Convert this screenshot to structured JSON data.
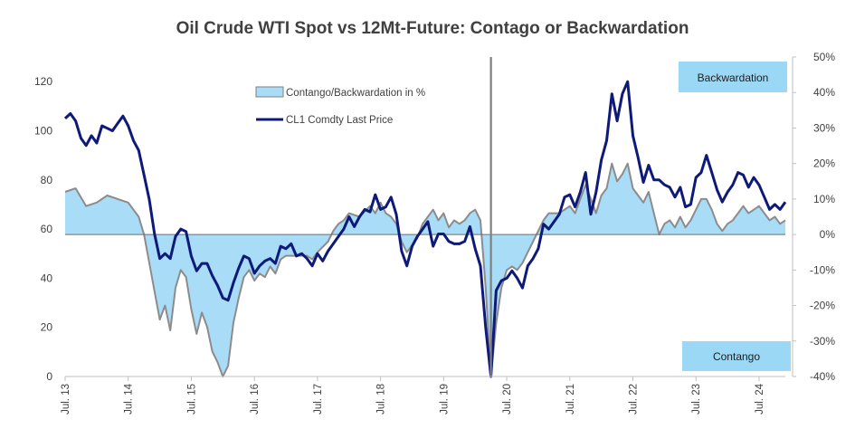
{
  "chart_data": {
    "type": "line",
    "title": "Oil Crude WTI Spot vs 12Mt-Future: Contago or Backwardation",
    "left_axis": {
      "ylim": [
        0,
        130
      ],
      "ticks": [
        0,
        20,
        40,
        60,
        80,
        100,
        120
      ]
    },
    "right_axis": {
      "ylim": [
        -40,
        50
      ],
      "unit": "%",
      "ticks": [
        "-40%",
        "-30%",
        "-20%",
        "-10%",
        "0%",
        "10%",
        "20%",
        "30%",
        "40%",
        "50%"
      ],
      "tick_values": [
        -40,
        -30,
        -20,
        -10,
        0,
        10,
        20,
        30,
        40,
        50
      ]
    },
    "x_axis": {
      "range": [
        "2013-07",
        "2024-12"
      ],
      "tick_labels": [
        "Jul. 13",
        "Jul. 14",
        "Jul. 15",
        "Jul. 16",
        "Jul. 17",
        "Jul. 18",
        "Jul. 19",
        "Jul. 20",
        "Jul. 21",
        "Jul. 22",
        "Jul. 23",
        "Jul. 24"
      ],
      "tick_dates": [
        "2013-07",
        "2014-07",
        "2015-07",
        "2016-07",
        "2017-07",
        "2018-07",
        "2019-07",
        "2020-07",
        "2021-07",
        "2022-07",
        "2023-07",
        "2024-07"
      ]
    },
    "legend": {
      "placement": "top-center",
      "entries": [
        "Contango/Backwardation in %",
        "CL1 Comdty Last Price"
      ]
    },
    "annotations": {
      "top_box": "Backwardation",
      "bottom_box": "Contango",
      "vertical_line_date": "2020-04"
    },
    "series": [
      {
        "name": "Contango/Backwardation in %",
        "axis": "right",
        "kind": "area",
        "color": "#a9dcf7",
        "edge_color": "#8c8c8c",
        "points": [
          [
            "2013-07",
            12
          ],
          [
            "2013-09",
            13
          ],
          [
            "2013-11",
            8
          ],
          [
            "2014-01",
            9
          ],
          [
            "2014-03",
            11
          ],
          [
            "2014-05",
            10
          ],
          [
            "2014-07",
            9
          ],
          [
            "2014-09",
            5
          ],
          [
            "2014-10",
            0
          ],
          [
            "2014-11",
            -8
          ],
          [
            "2014-12",
            -16
          ],
          [
            "2015-01",
            -24
          ],
          [
            "2015-02",
            -20
          ],
          [
            "2015-03",
            -27
          ],
          [
            "2015-04",
            -15
          ],
          [
            "2015-05",
            -10
          ],
          [
            "2015-06",
            -12
          ],
          [
            "2015-07",
            -21
          ],
          [
            "2015-08",
            -28
          ],
          [
            "2015-09",
            -22
          ],
          [
            "2015-10",
            -26
          ],
          [
            "2015-11",
            -33
          ],
          [
            "2015-12",
            -36
          ],
          [
            "2016-01",
            -40
          ],
          [
            "2016-02",
            -37
          ],
          [
            "2016-03",
            -25
          ],
          [
            "2016-04",
            -18
          ],
          [
            "2016-05",
            -12
          ],
          [
            "2016-06",
            -10
          ],
          [
            "2016-07",
            -13
          ],
          [
            "2016-08",
            -11
          ],
          [
            "2016-09",
            -12
          ],
          [
            "2016-10",
            -9
          ],
          [
            "2016-11",
            -11
          ],
          [
            "2016-12",
            -7
          ],
          [
            "2017-01",
            -6
          ],
          [
            "2017-03",
            -6
          ],
          [
            "2017-05",
            -6
          ],
          [
            "2017-06",
            -7
          ],
          [
            "2017-07",
            -5
          ],
          [
            "2017-09",
            -2
          ],
          [
            "2017-10",
            1
          ],
          [
            "2017-11",
            3
          ],
          [
            "2017-12",
            4
          ],
          [
            "2018-01",
            6
          ],
          [
            "2018-03",
            5
          ],
          [
            "2018-05",
            8
          ],
          [
            "2018-06",
            6
          ],
          [
            "2018-07",
            9
          ],
          [
            "2018-08",
            6
          ],
          [
            "2018-09",
            5
          ],
          [
            "2018-10",
            3
          ],
          [
            "2018-11",
            -2
          ],
          [
            "2018-12",
            -5
          ],
          [
            "2019-01",
            -3
          ],
          [
            "2019-02",
            -1
          ],
          [
            "2019-03",
            3
          ],
          [
            "2019-04",
            5
          ],
          [
            "2019-05",
            7
          ],
          [
            "2019-06",
            4
          ],
          [
            "2019-07",
            6
          ],
          [
            "2019-08",
            2
          ],
          [
            "2019-09",
            4
          ],
          [
            "2019-10",
            3
          ],
          [
            "2019-11",
            4
          ],
          [
            "2019-12",
            6
          ],
          [
            "2020-01",
            7
          ],
          [
            "2020-02",
            4
          ],
          [
            "2020-03",
            -15
          ],
          [
            "2020-04",
            -40
          ],
          [
            "2020-05",
            -25
          ],
          [
            "2020-06",
            -15
          ],
          [
            "2020-07",
            -10
          ],
          [
            "2020-08",
            -9
          ],
          [
            "2020-09",
            -10
          ],
          [
            "2020-10",
            -8
          ],
          [
            "2020-11",
            -5
          ],
          [
            "2020-12",
            -2
          ],
          [
            "2021-01",
            1
          ],
          [
            "2021-02",
            4
          ],
          [
            "2021-03",
            6
          ],
          [
            "2021-05",
            6
          ],
          [
            "2021-07",
            8
          ],
          [
            "2021-08",
            6
          ],
          [
            "2021-09",
            10
          ],
          [
            "2021-10",
            14
          ],
          [
            "2021-11",
            10
          ],
          [
            "2021-12",
            6
          ],
          [
            "2022-01",
            11
          ],
          [
            "2022-02",
            13
          ],
          [
            "2022-03",
            20
          ],
          [
            "2022-04",
            15
          ],
          [
            "2022-05",
            17
          ],
          [
            "2022-06",
            20
          ],
          [
            "2022-07",
            13
          ],
          [
            "2022-08",
            11
          ],
          [
            "2022-09",
            9
          ],
          [
            "2022-10",
            12
          ],
          [
            "2022-11",
            6
          ],
          [
            "2022-12",
            0
          ],
          [
            "2023-01",
            3
          ],
          [
            "2023-02",
            4
          ],
          [
            "2023-03",
            2
          ],
          [
            "2023-04",
            5
          ],
          [
            "2023-05",
            2
          ],
          [
            "2023-06",
            4
          ],
          [
            "2023-07",
            7
          ],
          [
            "2023-08",
            10
          ],
          [
            "2023-09",
            10
          ],
          [
            "2023-10",
            7
          ],
          [
            "2023-11",
            3
          ],
          [
            "2023-12",
            1
          ],
          [
            "2024-01",
            3
          ],
          [
            "2024-02",
            4
          ],
          [
            "2024-03",
            6
          ],
          [
            "2024-04",
            8
          ],
          [
            "2024-05",
            6
          ],
          [
            "2024-06",
            7
          ],
          [
            "2024-07",
            8
          ],
          [
            "2024-08",
            6
          ],
          [
            "2024-09",
            4
          ],
          [
            "2024-10",
            5
          ],
          [
            "2024-11",
            3
          ],
          [
            "2024-12",
            4
          ]
        ]
      },
      {
        "name": "CL1 Comdty Last Price",
        "axis": "left",
        "kind": "line",
        "color": "#0e1a7a",
        "points": [
          [
            "2013-07",
            105
          ],
          [
            "2013-08",
            107
          ],
          [
            "2013-09",
            104
          ],
          [
            "2013-10",
            97
          ],
          [
            "2013-11",
            94
          ],
          [
            "2013-12",
            98
          ],
          [
            "2014-01",
            95
          ],
          [
            "2014-02",
            102
          ],
          [
            "2014-03",
            101
          ],
          [
            "2014-04",
            100
          ],
          [
            "2014-05",
            103
          ],
          [
            "2014-06",
            106
          ],
          [
            "2014-07",
            102
          ],
          [
            "2014-08",
            96
          ],
          [
            "2014-09",
            92
          ],
          [
            "2014-10",
            82
          ],
          [
            "2014-11",
            72
          ],
          [
            "2014-12",
            58
          ],
          [
            "2015-01",
            48
          ],
          [
            "2015-02",
            50
          ],
          [
            "2015-03",
            48
          ],
          [
            "2015-04",
            57
          ],
          [
            "2015-05",
            60
          ],
          [
            "2015-06",
            59
          ],
          [
            "2015-07",
            49
          ],
          [
            "2015-08",
            43
          ],
          [
            "2015-09",
            46
          ],
          [
            "2015-10",
            46
          ],
          [
            "2015-11",
            41
          ],
          [
            "2015-12",
            37
          ],
          [
            "2016-01",
            32
          ],
          [
            "2016-02",
            31
          ],
          [
            "2016-03",
            38
          ],
          [
            "2016-04",
            44
          ],
          [
            "2016-05",
            49
          ],
          [
            "2016-06",
            48
          ],
          [
            "2016-07",
            42
          ],
          [
            "2016-08",
            45
          ],
          [
            "2016-09",
            47
          ],
          [
            "2016-10",
            48
          ],
          [
            "2016-11",
            46
          ],
          [
            "2016-12",
            53
          ],
          [
            "2017-01",
            52
          ],
          [
            "2017-02",
            54
          ],
          [
            "2017-03",
            49
          ],
          [
            "2017-04",
            50
          ],
          [
            "2017-05",
            48
          ],
          [
            "2017-06",
            45
          ],
          [
            "2017-07",
            50
          ],
          [
            "2017-08",
            47
          ],
          [
            "2017-09",
            51
          ],
          [
            "2017-10",
            54
          ],
          [
            "2017-11",
            57
          ],
          [
            "2017-12",
            60
          ],
          [
            "2018-01",
            65
          ],
          [
            "2018-02",
            61
          ],
          [
            "2018-03",
            65
          ],
          [
            "2018-04",
            68
          ],
          [
            "2018-05",
            67
          ],
          [
            "2018-06",
            74
          ],
          [
            "2018-07",
            68
          ],
          [
            "2018-08",
            69
          ],
          [
            "2018-09",
            73
          ],
          [
            "2018-10",
            66
          ],
          [
            "2018-11",
            51
          ],
          [
            "2018-12",
            45
          ],
          [
            "2019-01",
            53
          ],
          [
            "2019-02",
            57
          ],
          [
            "2019-03",
            60
          ],
          [
            "2019-04",
            63
          ],
          [
            "2019-05",
            53
          ],
          [
            "2019-06",
            58
          ],
          [
            "2019-07",
            58
          ],
          [
            "2019-08",
            55
          ],
          [
            "2019-09",
            54
          ],
          [
            "2019-10",
            54
          ],
          [
            "2019-11",
            55
          ],
          [
            "2019-12",
            61
          ],
          [
            "2020-01",
            52
          ],
          [
            "2020-02",
            45
          ],
          [
            "2020-03",
            20
          ],
          [
            "2020-04",
            -2
          ],
          [
            "2020-05",
            35
          ],
          [
            "2020-06",
            39
          ],
          [
            "2020-07",
            40
          ],
          [
            "2020-08",
            43
          ],
          [
            "2020-09",
            40
          ],
          [
            "2020-10",
            36
          ],
          [
            "2020-11",
            45
          ],
          [
            "2020-12",
            48
          ],
          [
            "2021-01",
            52
          ],
          [
            "2021-02",
            62
          ],
          [
            "2021-03",
            60
          ],
          [
            "2021-04",
            63
          ],
          [
            "2021-05",
            66
          ],
          [
            "2021-06",
            73
          ],
          [
            "2021-07",
            74
          ],
          [
            "2021-08",
            69
          ],
          [
            "2021-09",
            75
          ],
          [
            "2021-10",
            83
          ],
          [
            "2021-11",
            66
          ],
          [
            "2021-12",
            75
          ],
          [
            "2022-01",
            88
          ],
          [
            "2022-02",
            96
          ],
          [
            "2022-03",
            115
          ],
          [
            "2022-04",
            104
          ],
          [
            "2022-05",
            115
          ],
          [
            "2022-06",
            120
          ],
          [
            "2022-07",
            98
          ],
          [
            "2022-08",
            89
          ],
          [
            "2022-09",
            79
          ],
          [
            "2022-10",
            86
          ],
          [
            "2022-11",
            80
          ],
          [
            "2022-12",
            80
          ],
          [
            "2023-01",
            78
          ],
          [
            "2023-02",
            77
          ],
          [
            "2023-03",
            73
          ],
          [
            "2023-04",
            77
          ],
          [
            "2023-05",
            69
          ],
          [
            "2023-06",
            70
          ],
          [
            "2023-07",
            81
          ],
          [
            "2023-08",
            83
          ],
          [
            "2023-09",
            90
          ],
          [
            "2023-10",
            83
          ],
          [
            "2023-11",
            76
          ],
          [
            "2023-12",
            71
          ],
          [
            "2024-01",
            75
          ],
          [
            "2024-02",
            78
          ],
          [
            "2024-03",
            83
          ],
          [
            "2024-04",
            82
          ],
          [
            "2024-05",
            77
          ],
          [
            "2024-06",
            81
          ],
          [
            "2024-07",
            78
          ],
          [
            "2024-08",
            73
          ],
          [
            "2024-09",
            68
          ],
          [
            "2024-10",
            70
          ],
          [
            "2024-11",
            68
          ],
          [
            "2024-12",
            71
          ]
        ]
      }
    ]
  }
}
